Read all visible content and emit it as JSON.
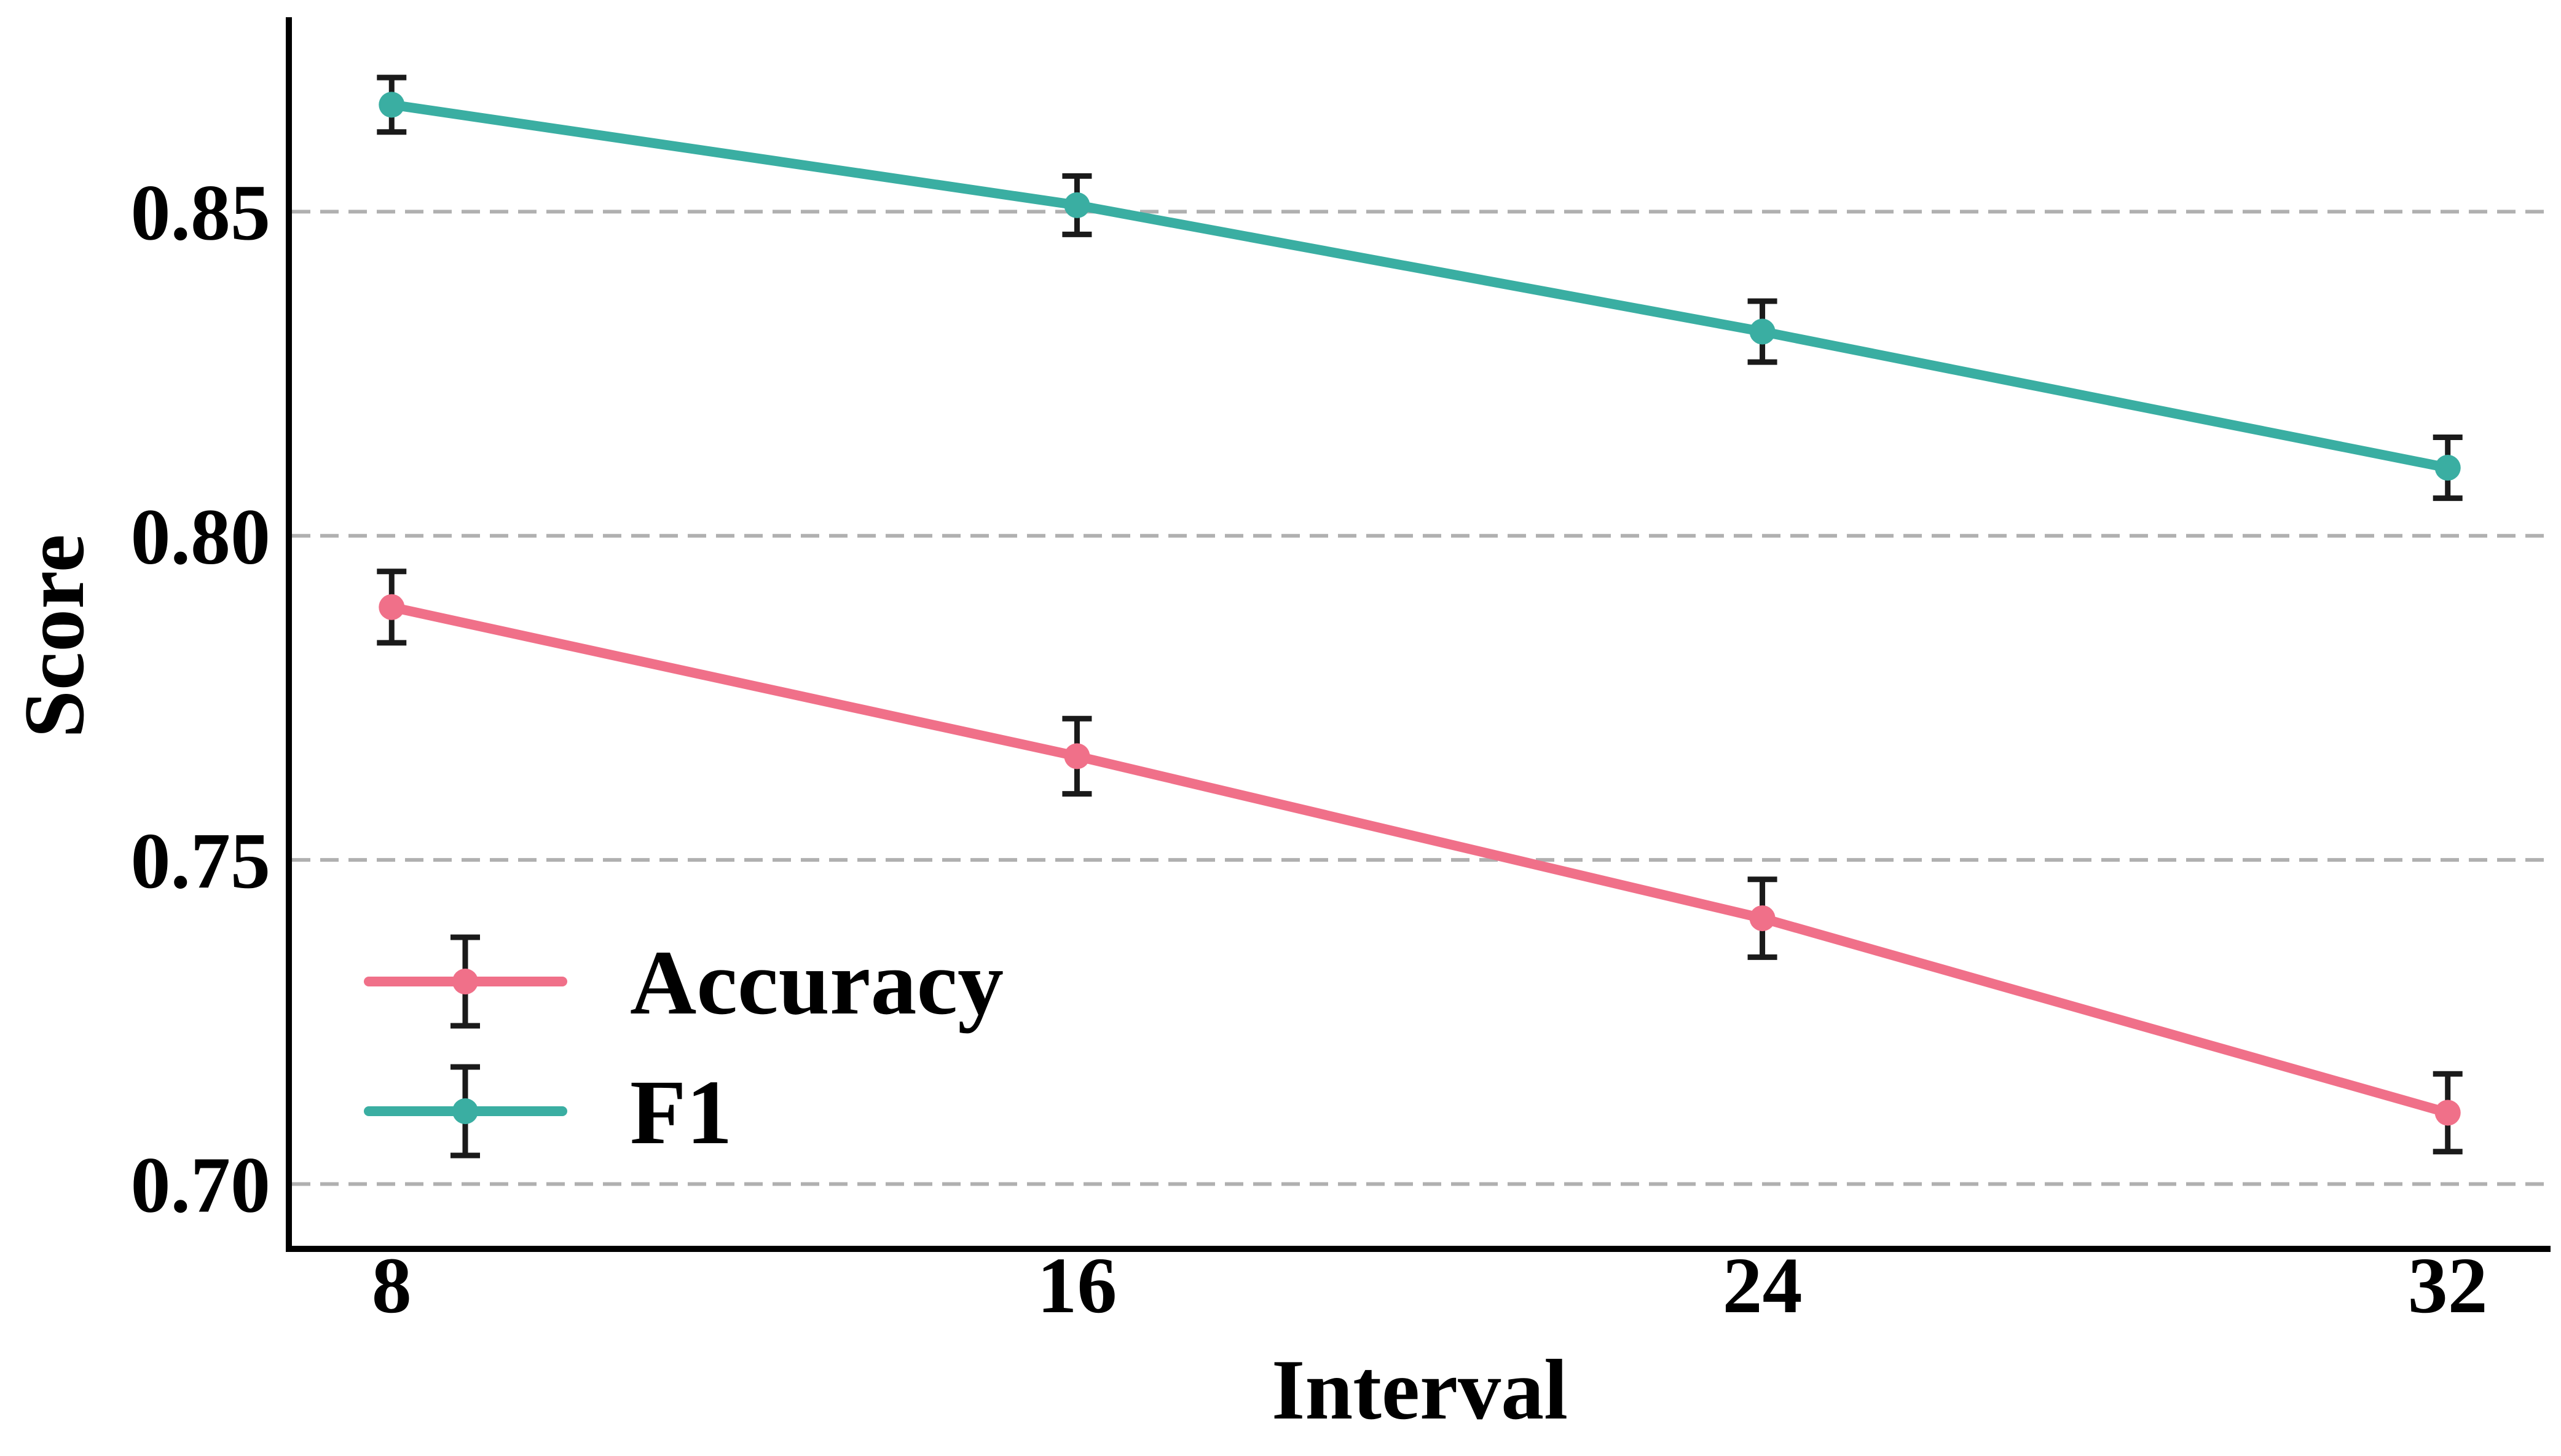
{
  "chart_data": {
    "type": "line",
    "title": "",
    "xlabel": "Interval",
    "ylabel": "Score",
    "x": [
      8,
      16,
      24,
      32
    ],
    "x_tick_labels": [
      "8",
      "16",
      "24",
      "32"
    ],
    "y_ticks": [
      0.7,
      0.75,
      0.8,
      0.85
    ],
    "y_tick_labels": [
      "0.70",
      "0.75",
      "0.80",
      "0.85"
    ],
    "xlim": [
      6.8,
      33.2
    ],
    "ylim": [
      0.69,
      0.88
    ],
    "grid": "horizontal dashed",
    "legend_position": "lower-left",
    "series": [
      {
        "name": "Accuracy",
        "color": "#f07089",
        "values": [
          0.789,
          0.766,
          0.741,
          0.711
        ],
        "errors": [
          0.0055,
          0.0058,
          0.006,
          0.006
        ]
      },
      {
        "name": "F1",
        "color": "#3aaea2",
        "values": [
          0.8665,
          0.851,
          0.8315,
          0.8105
        ],
        "errors": [
          0.0042,
          0.0045,
          0.0047,
          0.0047
        ]
      }
    ],
    "error_bar_color": "#1a1a1a",
    "grid_color": "#b0b0b0"
  }
}
